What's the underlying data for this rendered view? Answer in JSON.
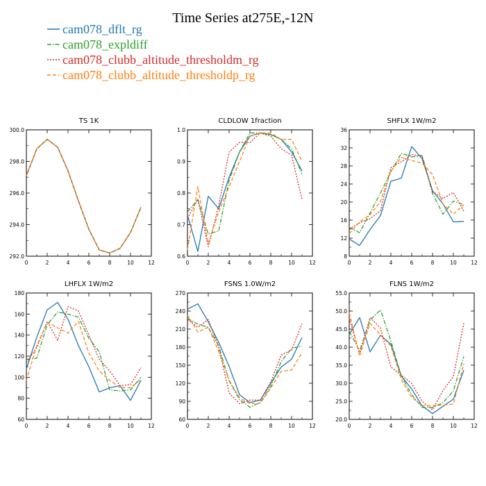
{
  "title": "Time Series at275E,-12N",
  "legend": [
    {
      "name": "cam078_dflt_rg",
      "color": "#1f77b4",
      "dash": "solid"
    },
    {
      "name": "cam078_expldiff",
      "color": "#2ca02c",
      "dash": "dashdot"
    },
    {
      "name": "cam078_clubb_altitude_thresholdm_rg",
      "color": "#d62728",
      "dash": "dot"
    },
    {
      "name": "cam078_clubb_altitude_thresholdp_rg",
      "color": "#ff7f0e",
      "dash": "dash"
    }
  ],
  "chart_data": [
    {
      "type": "line",
      "title": "TS   1K",
      "x": [
        0,
        1,
        2,
        3,
        4,
        5,
        6,
        7,
        8,
        9,
        10,
        11
      ],
      "xlim": [
        0,
        12
      ],
      "xticks": [
        0,
        2,
        4,
        6,
        8,
        10,
        12
      ],
      "ylim": [
        292,
        300
      ],
      "yticks": [
        292,
        294,
        296,
        298,
        300
      ],
      "ytick_labels": [
        "292.0",
        "294.0",
        "296.0",
        "298.0",
        "300.0"
      ],
      "series": [
        {
          "name": "cam078_dflt_rg",
          "values": [
            297.1,
            298.8,
            299.4,
            298.9,
            297.4,
            295.5,
            293.7,
            292.4,
            292.2,
            292.5,
            293.5,
            295.1
          ]
        },
        {
          "name": "cam078_expldiff",
          "values": [
            297.1,
            298.8,
            299.4,
            298.9,
            297.4,
            295.5,
            293.7,
            292.4,
            292.2,
            292.5,
            293.5,
            295.1
          ]
        },
        {
          "name": "cam078_clubb_altitude_thresholdm_rg",
          "values": [
            297.1,
            298.8,
            299.4,
            298.9,
            297.4,
            295.5,
            293.7,
            292.4,
            292.2,
            292.5,
            293.5,
            295.1
          ]
        },
        {
          "name": "cam078_clubb_altitude_thresholdp_rg",
          "values": [
            297.1,
            298.8,
            299.4,
            298.9,
            297.4,
            295.5,
            293.7,
            292.4,
            292.2,
            292.5,
            293.5,
            295.1
          ]
        }
      ]
    },
    {
      "type": "line",
      "title": "CLDLOW   1fraction",
      "x": [
        0,
        1,
        2,
        3,
        4,
        5,
        6,
        7,
        8,
        9,
        10,
        11
      ],
      "xlim": [
        0,
        12
      ],
      "xticks": [
        0,
        2,
        4,
        6,
        8,
        10,
        12
      ],
      "ylim": [
        0.6,
        1.0
      ],
      "yticks": [
        0.6,
        0.7,
        0.8,
        0.9,
        1.0
      ],
      "ytick_labels": [
        "0.6",
        "0.7",
        "0.8",
        "0.9",
        "1.0"
      ],
      "series": [
        {
          "name": "cam078_dflt_rg",
          "values": [
            0.73,
            0.615,
            0.79,
            0.75,
            0.85,
            0.93,
            0.98,
            0.99,
            0.985,
            0.97,
            0.93,
            0.87
          ]
        },
        {
          "name": "cam078_expldiff",
          "values": [
            0.74,
            0.78,
            0.67,
            0.68,
            0.84,
            0.93,
            0.99,
            0.99,
            0.985,
            0.97,
            0.94,
            0.86
          ]
        },
        {
          "name": "cam078_clubb_altitude_thresholdm_rg",
          "values": [
            0.72,
            0.78,
            0.63,
            0.76,
            0.93,
            0.96,
            0.96,
            0.99,
            0.98,
            0.94,
            0.92,
            0.78
          ]
        },
        {
          "name": "cam078_clubb_altitude_thresholdp_rg",
          "values": [
            0.62,
            0.82,
            0.64,
            0.74,
            0.82,
            0.9,
            0.98,
            0.99,
            0.99,
            0.97,
            0.97,
            0.9
          ]
        }
      ]
    },
    {
      "type": "line",
      "title": "SHFLX   1W/m2",
      "x": [
        0,
        1,
        2,
        3,
        4,
        5,
        6,
        7,
        8,
        9,
        10,
        11
      ],
      "xlim": [
        0,
        12
      ],
      "xticks": [
        0,
        2,
        4,
        6,
        8,
        10,
        12
      ],
      "ylim": [
        8,
        36
      ],
      "yticks": [
        8,
        12,
        16,
        20,
        24,
        28,
        32,
        36
      ],
      "ytick_labels": [
        "8",
        "12",
        "16",
        "20",
        "24",
        "28",
        "32",
        "36"
      ],
      "series": [
        {
          "name": "cam078_dflt_rg",
          "values": [
            11.8,
            10.4,
            13.9,
            17.0,
            24.6,
            25.3,
            32.3,
            29.6,
            22.5,
            19.6,
            15.6,
            15.7
          ]
        },
        {
          "name": "cam078_expldiff",
          "values": [
            14.4,
            13.2,
            17.6,
            22.0,
            26.7,
            30.8,
            30.0,
            30.3,
            21.9,
            17.3,
            20.2,
            19.4
          ]
        },
        {
          "name": "cam078_clubb_altitude_thresholdm_rg",
          "values": [
            14.0,
            15.4,
            16.3,
            18.1,
            27.6,
            28.9,
            30.5,
            30.2,
            22.3,
            20.8,
            22.1,
            18.0
          ]
        },
        {
          "name": "cam078_clubb_altitude_thresholdp_rg",
          "values": [
            13.0,
            15.6,
            17.2,
            20.1,
            26.8,
            29.9,
            29.2,
            28.6,
            26.1,
            19.6,
            17.3,
            19.4
          ]
        }
      ]
    },
    {
      "type": "line",
      "title": "LHFLX   1W/m2",
      "x": [
        0,
        1,
        2,
        3,
        4,
        5,
        6,
        7,
        8,
        9,
        10,
        11
      ],
      "xlim": [
        0,
        12
      ],
      "xticks": [
        0,
        2,
        4,
        6,
        8,
        10,
        12
      ],
      "ylim": [
        60,
        180
      ],
      "yticks": [
        60,
        80,
        100,
        120,
        140,
        160,
        180
      ],
      "ytick_labels": [
        "60",
        "80",
        "100",
        "120",
        "140",
        "160",
        "180"
      ],
      "series": [
        {
          "name": "cam078_dflt_rg",
          "values": [
            108,
            138,
            164,
            171,
            155,
            130,
            110,
            86,
            90,
            92,
            78,
            97
          ]
        },
        {
          "name": "cam078_expldiff",
          "values": [
            117,
            118,
            150,
            162,
            160,
            157,
            137,
            124,
            88,
            87,
            88,
            100
          ]
        },
        {
          "name": "cam078_clubb_altitude_thresholdm_rg",
          "values": [
            114,
            128,
            153,
            135,
            167,
            163,
            140,
            117,
            106,
            92,
            93,
            109
          ]
        },
        {
          "name": "cam078_clubb_altitude_thresholdp_rg",
          "values": [
            97,
            130,
            152,
            147,
            142,
            153,
            123,
            106,
            97,
            90,
            90,
            98
          ]
        }
      ]
    },
    {
      "type": "line",
      "title": "FSNS   1.0W/m2",
      "x": [
        0,
        1,
        2,
        3,
        4,
        5,
        6,
        7,
        8,
        9,
        10,
        11
      ],
      "xlim": [
        0,
        12
      ],
      "xticks": [
        0,
        2,
        4,
        6,
        8,
        10,
        12
      ],
      "ylim": [
        60,
        270
      ],
      "yticks": [
        60,
        90,
        120,
        150,
        180,
        210,
        240,
        270
      ],
      "ytick_labels": [
        "60",
        "90",
        "120",
        "150",
        "180",
        "210",
        "240",
        "270"
      ],
      "series": [
        {
          "name": "cam078_dflt_rg",
          "values": [
            243,
            252,
            222,
            188,
            148,
            101,
            88,
            92,
            120,
            147,
            160,
            196
          ]
        },
        {
          "name": "cam078_expldiff",
          "values": [
            228,
            218,
            213,
            182,
            124,
            93,
            80,
            88,
            115,
            156,
            178,
            182
          ]
        },
        {
          "name": "cam078_clubb_altitude_thresholdm_rg",
          "values": [
            226,
            213,
            226,
            180,
            104,
            86,
            92,
            92,
            122,
            167,
            175,
            219
          ]
        },
        {
          "name": "cam078_clubb_altitude_thresholdp_rg",
          "values": [
            233,
            205,
            213,
            173,
            125,
            96,
            86,
            87,
            112,
            140,
            142,
            171
          ]
        }
      ]
    },
    {
      "type": "line",
      "title": "FLNS   1W/m2",
      "x": [
        0,
        1,
        2,
        3,
        4,
        5,
        6,
        7,
        8,
        9,
        10,
        11
      ],
      "xlim": [
        0,
        12
      ],
      "xticks": [
        0,
        2,
        4,
        6,
        8,
        10,
        12
      ],
      "ylim": [
        20,
        55
      ],
      "yticks": [
        20,
        25,
        30,
        35,
        40,
        45,
        50,
        55
      ],
      "ytick_labels": [
        "20.0",
        "25.0",
        "30.0",
        "35.0",
        "40.0",
        "45.0",
        "50.0",
        "55.0"
      ],
      "series": [
        {
          "name": "cam078_dflt_rg",
          "values": [
            43.5,
            48.2,
            38.7,
            43.3,
            40.8,
            32.0,
            28.4,
            23.7,
            21.6,
            23.6,
            25.6,
            33.6
          ]
        },
        {
          "name": "cam078_expldiff",
          "values": [
            44.4,
            39.0,
            47.5,
            50.3,
            41.7,
            32.0,
            26.8,
            23.3,
            23.3,
            24.6,
            27.9,
            37.4
          ]
        },
        {
          "name": "cam078_clubb_altitude_thresholdm_rg",
          "values": [
            47.9,
            38.1,
            48.2,
            45.3,
            34.5,
            32.3,
            29.9,
            25.0,
            22.6,
            28.0,
            31.8,
            46.6
          ]
        },
        {
          "name": "cam078_clubb_altitude_thresholdp_rg",
          "values": [
            49.5,
            37.6,
            46.6,
            43.4,
            40.3,
            31.1,
            26.1,
            23.8,
            23.8,
            24.0,
            24.2,
            35.4
          ]
        }
      ]
    }
  ]
}
